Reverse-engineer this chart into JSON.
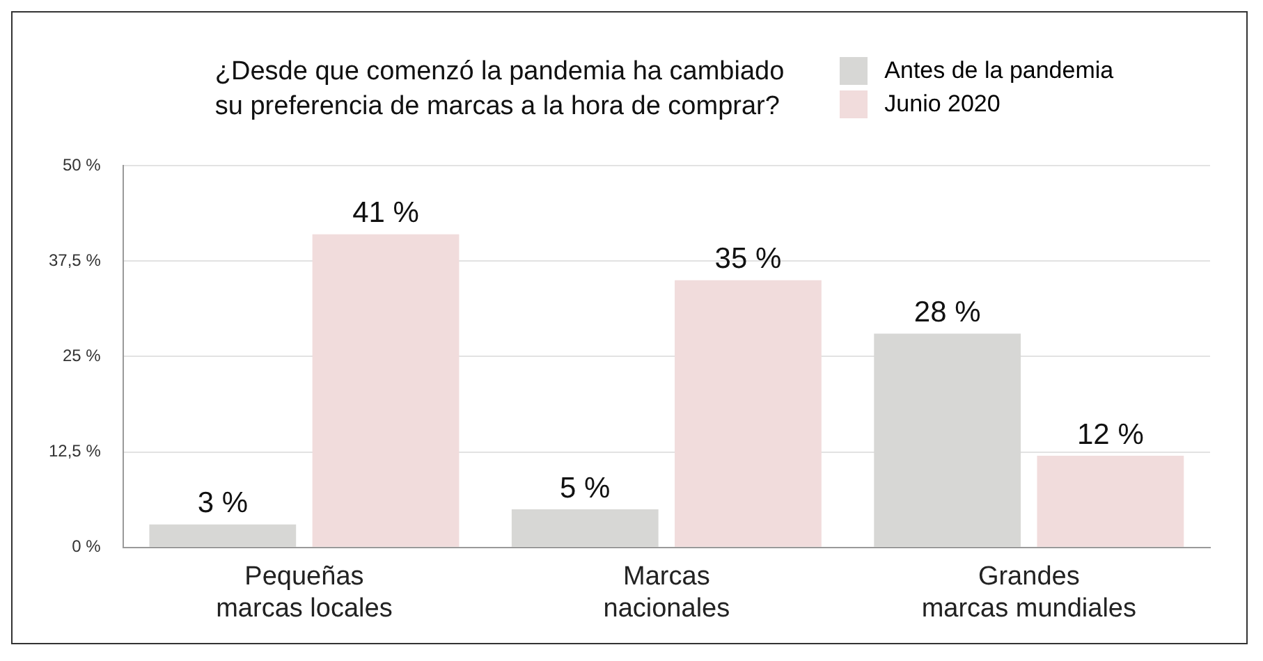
{
  "chart_data": {
    "type": "bar",
    "title": "¿Desde que comenzó la pandemia ha cambiado\nsu preferencia de marcas a la hora de comprar?",
    "categories": [
      "Pequeñas\nmarcas locales",
      "Marcas\nnacionales",
      "Grandes\nmarcas mundiales"
    ],
    "series": [
      {
        "name": "Antes de la pandemia",
        "color": "#d7d7d5",
        "values": [
          3,
          5,
          28
        ],
        "value_labels": [
          "3 %",
          "5 %",
          "28 %"
        ]
      },
      {
        "name": "Junio 2020",
        "color": "#f1dcdc",
        "values": [
          41,
          35,
          12
        ],
        "value_labels": [
          "41 %",
          "35 %",
          "12 %"
        ]
      }
    ],
    "ylim": [
      0,
      50
    ],
    "yticks": [
      {
        "value": 0,
        "label": "0 %"
      },
      {
        "value": 12.5,
        "label": "12,5 %"
      },
      {
        "value": 25,
        "label": "25 %"
      },
      {
        "value": 37.5,
        "label": "37,5 %"
      },
      {
        "value": 50,
        "label": "50 %"
      }
    ],
    "grid": "y",
    "legend": "top right"
  }
}
